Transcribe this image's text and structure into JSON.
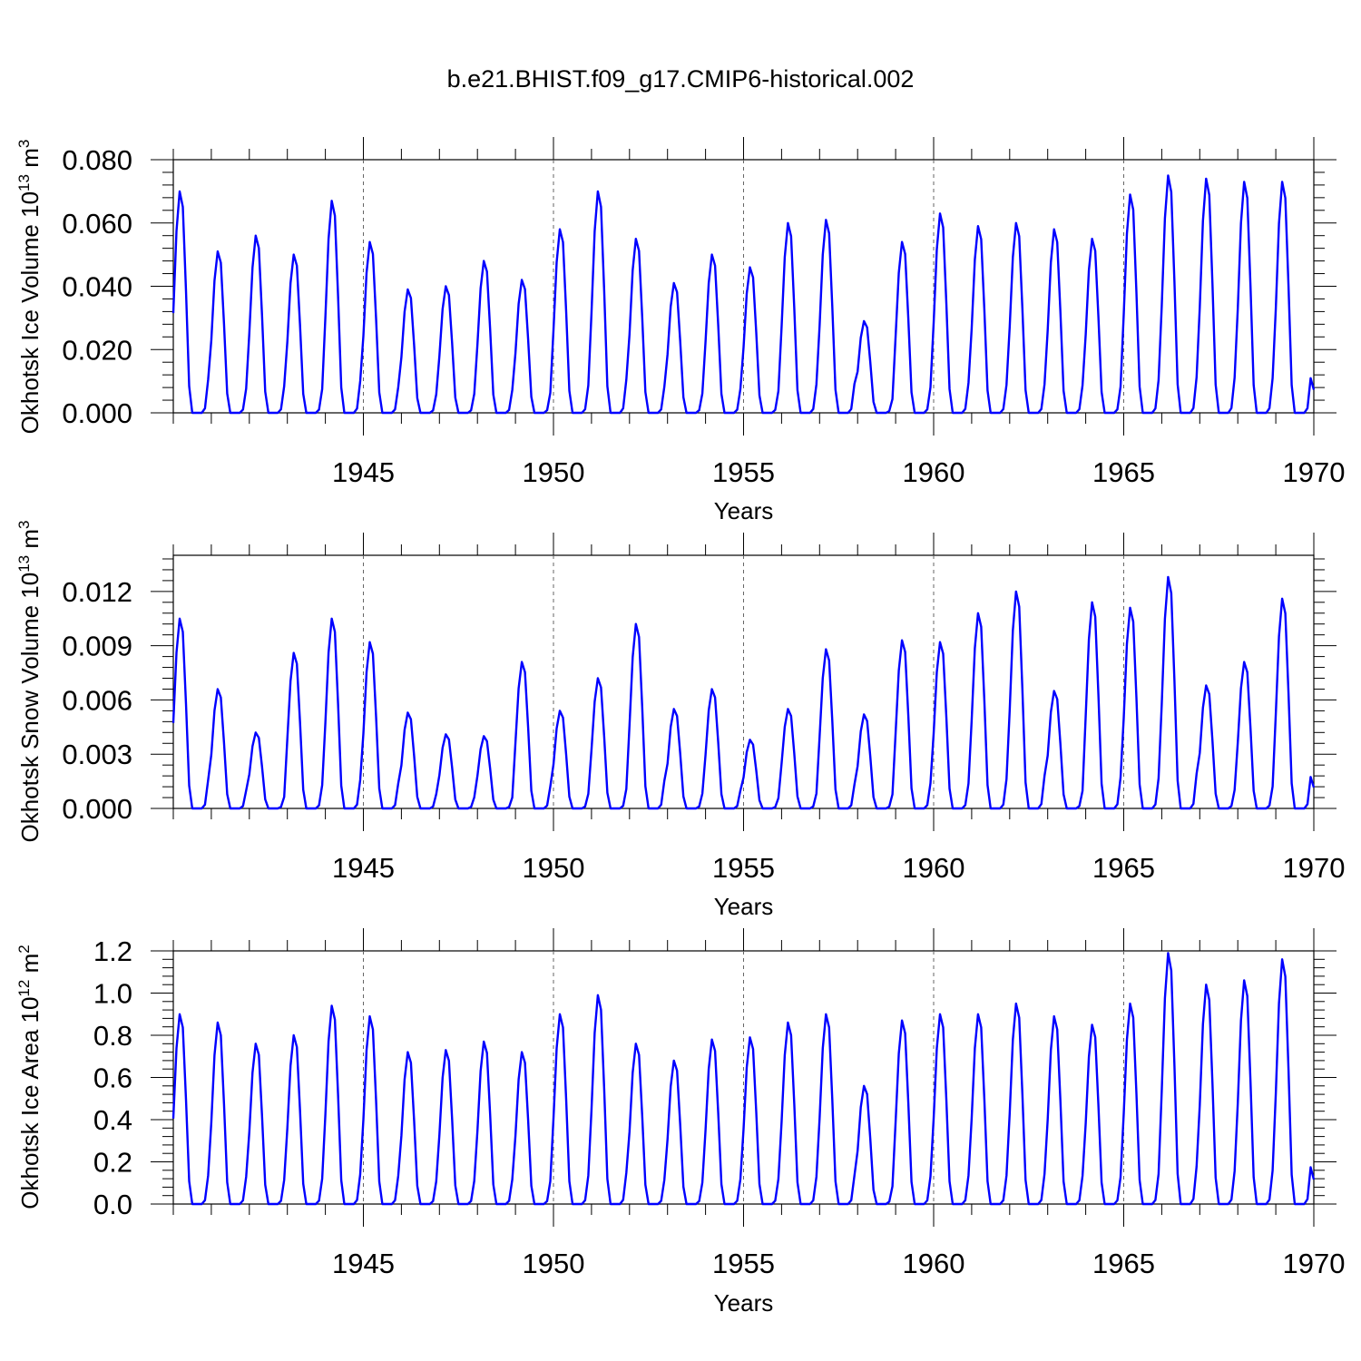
{
  "title": "b.e21.BHIST.f09_g17.CMIP6-historical.002",
  "chart_data": [
    {
      "type": "line",
      "title": "b.e21.BHIST.f09_g17.CMIP6-historical.002",
      "xlabel": "Years",
      "ylabel": "Okhotsk Ice Volume 10",
      "ylabel_sup": "13",
      "ylabel_unit": "m",
      "ylabel_unit_sup": "3",
      "xlim": [
        1940.0,
        1970.0
      ],
      "ylim": [
        0.0,
        0.08
      ],
      "yticks": [
        0.0,
        0.02,
        0.04,
        0.06,
        0.08
      ],
      "ytick_labels": [
        "0.000",
        "0.020",
        "0.040",
        "0.060",
        "0.080"
      ],
      "xticks": [
        1945,
        1950,
        1955,
        1960,
        1965,
        1970
      ],
      "xtick_labels": [
        "1945",
        "1950",
        "1955",
        "1960",
        "1965",
        "1970"
      ],
      "grid": "vertical dashed at major ticks",
      "line_color": "#0000ff",
      "series": [
        {
          "name": "Okhotsk Ice Volume",
          "start": 1940.0,
          "peaks": [
            0.07,
            0.051,
            0.056,
            0.05,
            0.067,
            0.054,
            0.039,
            0.04,
            0.048,
            0.042,
            0.058,
            0.07,
            0.055,
            0.041,
            0.05,
            0.046,
            0.06,
            0.061,
            0.029,
            0.054,
            0.063,
            0.059,
            0.06,
            0.058,
            0.055,
            0.069,
            0.075,
            0.074,
            0.073,
            0.073
          ]
        }
      ]
    },
    {
      "type": "line",
      "xlabel": "Years",
      "ylabel": "Okhotsk Snow Volume 10",
      "ylabel_sup": "13",
      "ylabel_unit": "m",
      "ylabel_unit_sup": "3",
      "xlim": [
        1940.0,
        1970.0
      ],
      "ylim": [
        0.0,
        0.014
      ],
      "yticks": [
        0.0,
        0.003,
        0.006,
        0.009,
        0.012
      ],
      "ytick_labels": [
        "0.000",
        "0.003",
        "0.006",
        "0.009",
        "0.012"
      ],
      "xticks": [
        1945,
        1950,
        1955,
        1960,
        1965,
        1970
      ],
      "xtick_labels": [
        "1945",
        "1950",
        "1955",
        "1960",
        "1965",
        "1970"
      ],
      "grid": "vertical dashed at major ticks",
      "line_color": "#0000ff",
      "series": [
        {
          "name": "Okhotsk Snow Volume",
          "start": 1940.0,
          "peaks": [
            0.0105,
            0.0066,
            0.0042,
            0.0086,
            0.0105,
            0.0092,
            0.0053,
            0.0041,
            0.004,
            0.0081,
            0.0054,
            0.0072,
            0.0102,
            0.0055,
            0.0066,
            0.0038,
            0.0055,
            0.0088,
            0.0052,
            0.0093,
            0.0092,
            0.0108,
            0.012,
            0.0065,
            0.0114,
            0.0111,
            0.0128,
            0.0068,
            0.0081,
            0.0116
          ]
        }
      ]
    },
    {
      "type": "line",
      "xlabel": "Years",
      "ylabel": "Okhotsk Ice Area 10",
      "ylabel_sup": "12",
      "ylabel_unit": "m",
      "ylabel_unit_sup": "2",
      "xlim": [
        1940.0,
        1970.0
      ],
      "ylim": [
        0.0,
        1.2
      ],
      "yticks": [
        0.0,
        0.2,
        0.4,
        0.6,
        0.8,
        1.0,
        1.2
      ],
      "ytick_labels": [
        "0.0",
        "0.2",
        "0.4",
        "0.6",
        "0.8",
        "1.0",
        "1.2"
      ],
      "xticks": [
        1945,
        1950,
        1955,
        1960,
        1965,
        1970
      ],
      "xtick_labels": [
        "1945",
        "1950",
        "1955",
        "1960",
        "1965",
        "1970"
      ],
      "grid": "vertical dashed at major ticks",
      "line_color": "#0000ff",
      "series": [
        {
          "name": "Okhotsk Ice Area",
          "start": 1940.0,
          "peaks": [
            0.9,
            0.86,
            0.76,
            0.8,
            0.94,
            0.89,
            0.72,
            0.73,
            0.77,
            0.72,
            0.9,
            0.99,
            0.76,
            0.68,
            0.78,
            0.79,
            0.86,
            0.9,
            0.56,
            0.87,
            0.9,
            0.9,
            0.95,
            0.89,
            0.85,
            0.95,
            1.19,
            1.04,
            1.06,
            1.16
          ]
        }
      ]
    }
  ]
}
